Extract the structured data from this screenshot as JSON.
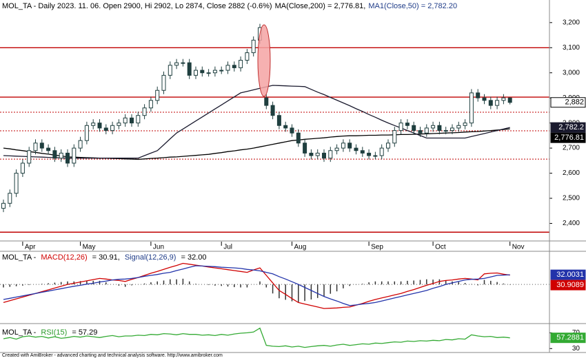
{
  "chart_data": [
    {
      "type": "candlestick",
      "header": [
        {
          "text": "MOL_TA - Daily 2023. 11. 06. Open 2900, Hi 2902, Lo 2874, Close 2882 (-0.6%)",
          "color": "#000000"
        },
        {
          "text": "MA(Close,200) = 2,776.81,",
          "color": "#000000"
        },
        {
          "text": "MA1(Close,50) = 2,782.20",
          "color": "#1f3c88"
        }
      ],
      "categories": [
        null,
        null,
        null,
        "Apr",
        null,
        null,
        null,
        null,
        null,
        null,
        null,
        null,
        "May",
        null,
        null,
        null,
        null,
        null,
        null,
        null,
        null,
        null,
        null,
        "Jun",
        null,
        null,
        null,
        null,
        null,
        null,
        null,
        null,
        null,
        null,
        "Jul",
        null,
        null,
        null,
        null,
        null,
        null,
        null,
        null,
        null,
        null,
        "Aug",
        null,
        null,
        null,
        null,
        null,
        null,
        null,
        null,
        null,
        null,
        null,
        "Sep",
        null,
        null,
        null,
        null,
        null,
        null,
        null,
        null,
        null,
        "Oct",
        null,
        null,
        null,
        null,
        null,
        null,
        null,
        null,
        null,
        null,
        null,
        "Nov"
      ],
      "open": [
        2460,
        2480,
        2520,
        2600,
        2640,
        2690,
        2720,
        2700,
        2690,
        2660,
        2680,
        2640,
        2700,
        2730,
        2790,
        2800,
        2780,
        2770,
        2790,
        2800,
        2820,
        2800,
        2830,
        2860,
        2890,
        2930,
        2990,
        3030,
        3040,
        3040,
        2990,
        3010,
        3000,
        3000,
        3010,
        3010,
        3030,
        3020,
        3050,
        3080,
        3130,
        2900,
        2870,
        2830,
        2790,
        2780,
        2760,
        2720,
        2680,
        2670,
        2680,
        2660,
        2690,
        2700,
        2720,
        2700,
        2690,
        2680,
        2670,
        2670,
        2700,
        2720,
        2770,
        2800,
        2790,
        2770,
        2760,
        2780,
        2790,
        2770,
        2770,
        2780,
        2790,
        2800,
        2920,
        2900,
        2890,
        2870,
        2890,
        2900
      ],
      "high": [
        2495,
        2535,
        2615,
        2655,
        2705,
        2735,
        2735,
        2715,
        2705,
        2695,
        2695,
        2715,
        2745,
        2805,
        2815,
        2815,
        2795,
        2805,
        2815,
        2835,
        2835,
        2845,
        2875,
        2905,
        2945,
        3005,
        3045,
        3055,
        3055,
        3055,
        3025,
        3025,
        3015,
        3025,
        3025,
        3045,
        3045,
        3065,
        3095,
        3145,
        3195,
        2915,
        2885,
        2845,
        2805,
        2795,
        2775,
        2735,
        2695,
        2695,
        2695,
        2705,
        2715,
        2735,
        2735,
        2715,
        2705,
        2695,
        2685,
        2715,
        2735,
        2785,
        2815,
        2815,
        2805,
        2785,
        2795,
        2805,
        2805,
        2785,
        2795,
        2805,
        2815,
        2935,
        2935,
        2915,
        2905,
        2905,
        2915,
        2902
      ],
      "low": [
        2445,
        2465,
        2505,
        2585,
        2625,
        2675,
        2685,
        2675,
        2645,
        2645,
        2625,
        2625,
        2685,
        2715,
        2775,
        2765,
        2755,
        2755,
        2775,
        2785,
        2785,
        2785,
        2815,
        2845,
        2875,
        2915,
        2975,
        3015,
        3025,
        2975,
        2975,
        2985,
        2985,
        2985,
        2995,
        2995,
        3005,
        3005,
        3035,
        3065,
        3115,
        2855,
        2815,
        2775,
        2765,
        2745,
        2705,
        2665,
        2655,
        2655,
        2645,
        2645,
        2675,
        2685,
        2685,
        2675,
        2665,
        2655,
        2655,
        2655,
        2685,
        2705,
        2755,
        2775,
        2755,
        2745,
        2745,
        2765,
        2755,
        2755,
        2755,
        2765,
        2775,
        2785,
        2885,
        2875,
        2855,
        2855,
        2875,
        2874
      ],
      "close": [
        2480,
        2520,
        2600,
        2640,
        2690,
        2720,
        2700,
        2690,
        2660,
        2680,
        2640,
        2700,
        2730,
        2790,
        2800,
        2780,
        2770,
        2790,
        2800,
        2820,
        2800,
        2830,
        2860,
        2890,
        2930,
        2990,
        3030,
        3040,
        3040,
        2990,
        3010,
        3000,
        3000,
        3010,
        3010,
        3030,
        3020,
        3050,
        3080,
        3130,
        3180,
        2870,
        2830,
        2790,
        2780,
        2760,
        2720,
        2680,
        2670,
        2680,
        2660,
        2690,
        2700,
        2720,
        2700,
        2690,
        2680,
        2670,
        2670,
        2700,
        2720,
        2770,
        2800,
        2790,
        2770,
        2760,
        2780,
        2790,
        2770,
        2770,
        2780,
        2790,
        2800,
        2920,
        2900,
        2890,
        2870,
        2890,
        2900,
        2882
      ],
      "close_label": "2,882",
      "candle_color": "#1f3f3f",
      "series": [
        {
          "color": "#000000",
          "last_label": "2,776.81",
          "values": [
            2700,
            2697,
            2693,
            2690,
            2686,
            2683,
            2679,
            2676,
            2672,
            2669,
            2665,
            2664,
            2663,
            2662,
            2661,
            2660,
            2660,
            2659,
            2658,
            2657,
            2656,
            2655,
            2657,
            2659,
            2660,
            2662,
            2664,
            2665,
            2667,
            2669,
            2671,
            2673,
            2675,
            2679,
            2682,
            2686,
            2689,
            2693,
            2696,
            2700,
            2705,
            2710,
            2715,
            2720,
            2725,
            2730,
            2732,
            2735,
            2737,
            2739,
            2741,
            2744,
            2746,
            2748,
            2749,
            2749,
            2750,
            2751,
            2751,
            2752,
            2752,
            2753,
            2754,
            2754,
            2755,
            2756,
            2757,
            2758,
            2759,
            2760,
            2761,
            2762,
            2764,
            2765,
            2766,
            2768,
            2770,
            2772,
            2774,
            2776.81
          ]
        },
        {
          "color": "#1a1a2e",
          "last_label": "2,782.2",
          "values": [
            2670,
            2669,
            2668,
            2667,
            2666,
            2665,
            2664,
            2663,
            2662,
            2661,
            2660,
            2660,
            2660,
            2660,
            2660,
            2660,
            2660,
            2660,
            2660,
            2660,
            2660,
            2660,
            2670,
            2680,
            2690,
            2713,
            2737,
            2760,
            2776,
            2792,
            2808,
            2824,
            2840,
            2856,
            2872,
            2888,
            2904,
            2920,
            2926,
            2932,
            2938,
            2944,
            2950,
            2949,
            2948,
            2947,
            2946,
            2945,
            2934,
            2923,
            2913,
            2902,
            2891,
            2880,
            2869,
            2857,
            2846,
            2834,
            2823,
            2811,
            2800,
            2790,
            2780,
            2770,
            2760,
            2750,
            2740,
            2740,
            2740,
            2740,
            2740,
            2740,
            2740,
            2746,
            2752,
            2758,
            2764,
            2770,
            2776,
            2782.2
          ]
        }
      ],
      "levels": [
        {
          "value": 3100,
          "style": "solid"
        },
        {
          "value": 2903,
          "style": "solid"
        },
        {
          "value": 2365,
          "style": "solid"
        },
        {
          "value": 2843,
          "style": "dotted"
        },
        {
          "value": 2769,
          "style": "dotted"
        },
        {
          "value": 2656,
          "style": "dotted"
        }
      ],
      "level_color": "#c00000",
      "ylim": [
        2330,
        3290
      ],
      "yticks": [
        {
          "value": 2400,
          "label": "2,400"
        },
        {
          "value": 2500,
          "label": "2,500"
        },
        {
          "value": 2600,
          "label": "2,600"
        },
        {
          "value": 2700,
          "label": "2,700"
        },
        {
          "value": 2800,
          "label": "2,800"
        },
        {
          "value": 2900,
          "label": "2,900"
        },
        {
          "value": 3000,
          "label": "3,000"
        },
        {
          "value": 3100,
          "label": "3,100"
        },
        {
          "value": 3200,
          "label": "3,200"
        }
      ]
    },
    {
      "type": "line",
      "header": [
        {
          "text": "MOL_TA - ",
          "color": "#000000"
        },
        {
          "text": "MACD(12,26)",
          "color": "#d00000"
        },
        {
          "text": " = 30.91, ",
          "color": "#000000"
        },
        {
          "text": "Signal(12,26,9)",
          "color": "#1f3c88"
        },
        {
          "text": " = 32.00",
          "color": "#000000"
        }
      ],
      "ylim": [
        -130,
        110
      ],
      "histogram": {
        "color": "#333333",
        "values": [
          -10,
          -8,
          -6,
          -4,
          -2,
          0,
          2,
          4,
          6,
          8,
          10,
          10,
          11,
          11,
          12,
          12,
          7,
          0,
          -4,
          -8,
          -3,
          0,
          3,
          7,
          10,
          13,
          17,
          17,
          19,
          10,
          2,
          0,
          -2,
          -4,
          -5,
          -7,
          -9,
          -10,
          -10,
          0,
          10,
          -10,
          -30,
          -46,
          -51,
          -56,
          -60,
          -55,
          -50,
          -45,
          -40,
          -31,
          -23,
          -13,
          -5,
          -1,
          2,
          7,
          10,
          10,
          10,
          10,
          10,
          12,
          13,
          15,
          17,
          16,
          17,
          13,
          10,
          8,
          5,
          1,
          -3,
          15,
          12,
          8,
          3,
          -1.0942
        ]
      },
      "series": [
        {
          "color": "#d00000",
          "last_label": "30.9089",
          "values": [
            -60,
            -54,
            -48,
            -42,
            -36,
            -30,
            -24,
            -18,
            -12,
            -6,
            0,
            4,
            8,
            12,
            16,
            20,
            18,
            15,
            13,
            10,
            17,
            23,
            30,
            37,
            43,
            50,
            57,
            63,
            70,
            67,
            64,
            61,
            58,
            55,
            52,
            49,
            46,
            43,
            40,
            48,
            55,
            30,
            5,
            -20,
            -33,
            -47,
            -60,
            -65,
            -70,
            -75,
            -80,
            -79,
            -78,
            -76,
            -75,
            -69,
            -63,
            -56,
            -50,
            -45,
            -40,
            -35,
            -30,
            -23,
            -17,
            -10,
            -3,
            3,
            10,
            13,
            15,
            18,
            20,
            18,
            15,
            35,
            37,
            38,
            34,
            30.9089
          ]
        },
        {
          "color": "#2233aa",
          "last_label": "32.0031",
          "values": [
            -50,
            -46,
            -42,
            -38,
            -34,
            -30,
            -26,
            -22,
            -18,
            -14,
            -10,
            -6,
            -3,
            1,
            4,
            8,
            11,
            15,
            17,
            18,
            20,
            23,
            27,
            30,
            33,
            37,
            40,
            46,
            51,
            57,
            62,
            61,
            60,
            59,
            57,
            56,
            55,
            53,
            50,
            48,
            45,
            40,
            35,
            26,
            18,
            9,
            0,
            -10,
            -20,
            -30,
            -40,
            -48,
            -55,
            -63,
            -70,
            -68,
            -65,
            -63,
            -60,
            -55,
            -50,
            -45,
            -40,
            -35,
            -30,
            -25,
            -20,
            -13,
            -7,
            0,
            5,
            10,
            15,
            17,
            18,
            20,
            25,
            30,
            31,
            32.0031
          ]
        }
      ]
    },
    {
      "type": "line",
      "header": [
        {
          "text": "MOL_TA - ",
          "color": "#000000"
        },
        {
          "text": "RSI(15)",
          "color": "#2a9a2a"
        },
        {
          "text": " = 57.29",
          "color": "#000000"
        }
      ],
      "ylim": [
        20,
        90
      ],
      "yticks": [
        30,
        70
      ],
      "series": [
        {
          "color": "#33aa33",
          "last_label": "57.2881",
          "values": [
            55,
            58,
            54,
            60,
            62,
            59,
            61,
            57,
            60,
            56,
            58,
            61,
            59,
            62,
            60,
            58,
            61,
            63,
            60,
            62,
            62,
            64,
            63,
            66,
            65,
            68,
            67,
            65,
            68,
            66,
            66,
            64,
            65,
            63,
            66,
            64,
            67,
            69,
            70,
            72,
            82,
            38,
            36,
            35,
            37,
            34,
            36,
            33,
            35,
            37,
            38,
            36,
            39,
            41,
            38,
            40,
            42,
            41,
            44,
            43,
            45,
            47,
            46,
            49,
            48,
            50,
            49,
            51,
            50,
            53,
            52,
            55,
            54,
            65,
            62,
            60,
            61,
            58,
            59,
            57.2881
          ]
        }
      ]
    }
  ],
  "footer": "Created with AmiBroker - advanced charting and technical analysis software. http://www.amibroker.com"
}
